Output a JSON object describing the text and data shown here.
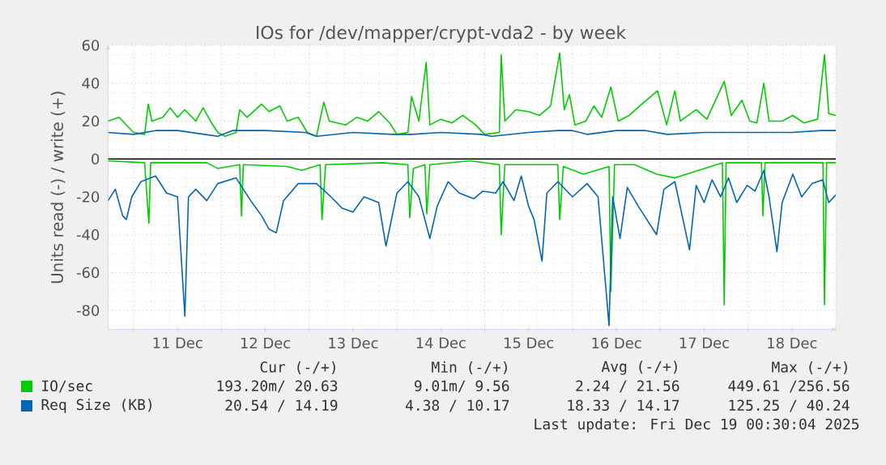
{
  "chart_data": {
    "type": "line",
    "title": "IOs for /dev/mapper/crypt-vda2 - by week",
    "ylabel": "Units read (-) / write (+)",
    "xlim": [
      "2025-12-10T17:00",
      "2025-12-19T00:00"
    ],
    "ylim": [
      -90,
      60
    ],
    "xticks": [
      {
        "value": "2025-12-11T00:00",
        "label": null
      },
      {
        "value": "2025-12-11T12:00",
        "label": "11 Dec"
      },
      {
        "value": "2025-12-12T00:00",
        "label": null
      },
      {
        "value": "2025-12-12T12:00",
        "label": "12 Dec"
      },
      {
        "value": "2025-12-13T00:00",
        "label": null
      },
      {
        "value": "2025-12-13T12:00",
        "label": "13 Dec"
      },
      {
        "value": "2025-12-14T00:00",
        "label": null
      },
      {
        "value": "2025-12-14T12:00",
        "label": "14 Dec"
      },
      {
        "value": "2025-12-15T00:00",
        "label": null
      },
      {
        "value": "2025-12-15T12:00",
        "label": "15 Dec"
      },
      {
        "value": "2025-12-16T00:00",
        "label": null
      },
      {
        "value": "2025-12-16T12:00",
        "label": "16 Dec"
      },
      {
        "value": "2025-12-17T00:00",
        "label": null
      },
      {
        "value": "2025-12-17T12:00",
        "label": "17 Dec"
      },
      {
        "value": "2025-12-18T00:00",
        "label": null
      },
      {
        "value": "2025-12-18T12:00",
        "label": "18 Dec"
      },
      {
        "value": "2025-12-19T00:00",
        "label": null
      }
    ],
    "yticks": [
      -80,
      -60,
      -40,
      -20,
      0,
      20,
      40,
      60
    ],
    "grid": true,
    "legend": "bottom",
    "marker": "none",
    "line_style": "solid",
    "ref_lines": [
      {
        "axis": "y",
        "value": 0,
        "color": "#000000"
      }
    ],
    "series": [
      {
        "name": "IO/sec",
        "color": "#00cc00",
        "x": [
          "2025-12-10T17:00",
          "2025-12-10T20:00",
          "2025-12-10T21:00",
          "2025-12-11T00:00",
          "2025-12-11T03:00",
          "2025-12-11T04:00",
          "2025-12-11T05:00",
          "2025-12-11T08:00",
          "2025-12-11T10:00",
          "2025-12-11T12:00",
          "2025-12-11T14:00",
          "2025-12-11T17:00",
          "2025-12-11T19:00",
          "2025-12-11T21:00",
          "2025-12-11T23:00",
          "2025-12-12T01:00",
          "2025-12-12T04:00",
          "2025-12-12T05:00",
          "2025-12-12T07:00",
          "2025-12-12T11:00",
          "2025-12-12T13:00",
          "2025-12-12T16:00",
          "2025-12-12T18:00",
          "2025-12-12T21:00",
          "2025-12-12T23:30",
          "2025-12-13T02:00",
          "2025-12-13T04:00",
          "2025-12-13T05:30",
          "2025-12-13T10:00",
          "2025-12-13T13:00",
          "2025-12-13T16:00",
          "2025-12-13T19:00",
          "2025-12-13T22:00",
          "2025-12-14T00:00",
          "2025-12-14T03:00",
          "2025-12-14T04:00",
          "2025-12-14T06:00",
          "2025-12-14T08:00",
          "2025-12-14T09:00",
          "2025-12-14T12:00",
          "2025-12-14T15:00",
          "2025-12-14T18:00",
          "2025-12-14T21:30",
          "2025-12-15T00:00",
          "2025-12-15T04:00",
          "2025-12-15T04:30",
          "2025-12-15T05:30",
          "2025-12-15T08:30",
          "2025-12-15T12:00",
          "2025-12-15T15:00",
          "2025-12-15T18:00",
          "2025-12-15T20:30",
          "2025-12-15T21:45",
          "2025-12-15T23:10",
          "2025-12-16T00:40",
          "2025-12-16T03:40",
          "2025-12-16T05:50",
          "2025-12-16T08:00",
          "2025-12-16T10:30",
          "2025-12-16T12:30",
          "2025-12-16T15:30",
          "2025-12-16T19:00",
          "2025-12-16T23:15",
          "2025-12-17T01:45",
          "2025-12-17T04:00",
          "2025-12-17T05:30",
          "2025-12-17T09:50",
          "2025-12-17T12:45",
          "2025-12-17T17:30",
          "2025-12-17T19:25",
          "2025-12-17T22:20",
          "2025-12-18T00:30",
          "2025-12-18T02:25",
          "2025-12-18T04:20",
          "2025-12-18T05:45",
          "2025-12-18T09:20",
          "2025-12-18T12:15",
          "2025-12-18T15:20",
          "2025-12-18T19:00",
          "2025-12-18T20:55",
          "2025-12-18T22:05",
          "2025-12-19T00:00"
        ],
        "values": [
          20,
          22,
          20,
          14,
          13,
          29,
          20,
          22,
          27,
          22,
          26,
          20,
          27,
          20,
          14,
          12,
          14,
          26,
          22,
          29,
          25,
          28,
          20,
          22,
          14,
          12,
          30,
          20,
          18,
          22,
          20,
          25,
          19,
          13,
          14,
          33,
          20,
          51,
          18,
          21,
          19,
          23,
          18,
          13,
          14,
          55,
          20,
          26,
          25,
          23,
          28,
          56,
          26,
          34,
          18,
          20,
          28,
          22,
          38,
          20,
          23,
          29,
          36,
          18,
          36,
          20,
          26,
          21,
          41,
          23,
          31,
          20,
          19,
          40,
          20,
          20,
          23,
          19,
          21,
          55,
          24,
          23
        ]
      },
      {
        "color": "#00cc00",
        "x": [
          "2025-12-10T17:00",
          "2025-12-11T03:00",
          "2025-12-11T04:10",
          "2025-12-11T04:40",
          "2025-12-11T20:00",
          "2025-12-11T23:00",
          "2025-12-12T05:00",
          "2025-12-12T05:30",
          "2025-12-12T06:00",
          "2025-12-12T18:00",
          "2025-12-12T22:00",
          "2025-12-13T03:00",
          "2025-12-13T03:30",
          "2025-12-13T04:30",
          "2025-12-13T20:00",
          "2025-12-14T03:00",
          "2025-12-14T03:30",
          "2025-12-14T04:30",
          "2025-12-14T07:40",
          "2025-12-14T08:10",
          "2025-12-14T09:00",
          "2025-12-14T20:00",
          "2025-12-15T04:00",
          "2025-12-15T04:30",
          "2025-12-15T05:30",
          "2025-12-15T20:00",
          "2025-12-15T20:30",
          "2025-12-15T21:30",
          "2025-12-16T03:00",
          "2025-12-16T10:00",
          "2025-12-16T10:30",
          "2025-12-16T11:30",
          "2025-12-16T17:00",
          "2025-12-16T23:00",
          "2025-12-17T04:00",
          "2025-12-17T17:00",
          "2025-12-17T17:30",
          "2025-12-17T18:00",
          "2025-12-18T03:40",
          "2025-12-18T04:05",
          "2025-12-18T04:40",
          "2025-12-18T20:30",
          "2025-12-18T20:55",
          "2025-12-18T21:30",
          "2025-12-19T00:00"
        ],
        "values": [
          -1,
          -2,
          -34,
          -2,
          -2,
          -5,
          -3,
          -30,
          -3,
          -4,
          -6,
          -3,
          -32,
          -3,
          -2,
          -3,
          -31,
          -5,
          -3,
          -29,
          -3,
          -1,
          -3,
          -40,
          -3,
          -3,
          -32,
          -4,
          -8,
          -4,
          -70,
          -3,
          -3,
          -8,
          -10,
          -2,
          -77,
          -2,
          -2,
          -30,
          -2,
          -2,
          -77,
          -2,
          -2
        ]
      },
      {
        "name": "Req Size (KB)",
        "color": "#0066b3",
        "x": [
          "2025-12-10T17:00",
          "2025-12-11T00:00",
          "2025-12-11T06:00",
          "2025-12-11T12:00",
          "2025-12-11T23:00",
          "2025-12-12T03:00",
          "2025-12-12T12:00",
          "2025-12-12T23:00",
          "2025-12-13T02:00",
          "2025-12-13T12:00",
          "2025-12-13T23:00",
          "2025-12-14T04:00",
          "2025-12-14T12:00",
          "2025-12-14T23:00",
          "2025-12-15T02:00",
          "2025-12-15T12:00",
          "2025-12-15T20:00",
          "2025-12-16T00:00",
          "2025-12-16T04:00",
          "2025-12-16T12:00",
          "2025-12-16T20:00",
          "2025-12-17T02:00",
          "2025-12-17T12:00",
          "2025-12-17T20:00",
          "2025-12-18T00:00",
          "2025-12-18T12:00",
          "2025-12-18T20:00",
          "2025-12-19T00:00"
        ],
        "values": [
          14,
          13,
          15,
          15,
          12,
          15,
          15,
          14,
          12,
          14,
          13,
          13,
          14,
          13,
          12,
          14,
          15,
          15,
          13,
          15,
          15,
          13,
          14,
          14,
          14,
          14,
          15,
          15
        ]
      },
      {
        "color": "#0066b3",
        "x": [
          "2025-12-10T17:00",
          "2025-12-10T19:00",
          "2025-12-10T21:00",
          "2025-12-10T22:00",
          "2025-12-10T23:30",
          "2025-12-11T02:00",
          "2025-12-11T06:00",
          "2025-12-11T09:00",
          "2025-12-11T12:00",
          "2025-12-11T14:00",
          "2025-12-11T15:00",
          "2025-12-11T17:00",
          "2025-12-11T20:00",
          "2025-12-11T23:00",
          "2025-12-12T04:00",
          "2025-12-12T08:00",
          "2025-12-12T11:00",
          "2025-12-12T13:00",
          "2025-12-12T15:00",
          "2025-12-12T17:00",
          "2025-12-12T21:00",
          "2025-12-13T02:00",
          "2025-12-13T06:00",
          "2025-12-13T09:00",
          "2025-12-13T12:00",
          "2025-12-13T15:00",
          "2025-12-13T19:00",
          "2025-12-13T21:00",
          "2025-12-14T00:00",
          "2025-12-14T03:00",
          "2025-12-14T06:00",
          "2025-12-14T09:00",
          "2025-12-14T11:00",
          "2025-12-14T14:00",
          "2025-12-14T17:00",
          "2025-12-14T21:00",
          "2025-12-14T23:30",
          "2025-12-15T03:00",
          "2025-12-15T05:00",
          "2025-12-15T08:00",
          "2025-12-15T10:00",
          "2025-12-15T12:00",
          "2025-12-15T13:30",
          "2025-12-15T15:40",
          "2025-12-15T17:00",
          "2025-12-15T20:00",
          "2025-12-16T00:00",
          "2025-12-16T04:00",
          "2025-12-16T07:00",
          "2025-12-16T10:00",
          "2025-12-16T11:00",
          "2025-12-16T13:00",
          "2025-12-16T15:00",
          "2025-12-16T18:00",
          "2025-12-16T23:00",
          "2025-12-17T01:00",
          "2025-12-17T04:00",
          "2025-12-17T08:00",
          "2025-12-17T09:50",
          "2025-12-17T12:00",
          "2025-12-17T14:10",
          "2025-12-17T16:30",
          "2025-12-17T18:40",
          "2025-12-17T20:55",
          "2025-12-17T23:45",
          "2025-12-18T01:55",
          "2025-12-18T04:20",
          "2025-12-18T05:45",
          "2025-12-18T07:55",
          "2025-12-18T09:20",
          "2025-12-18T12:15",
          "2025-12-18T14:40",
          "2025-12-18T17:30",
          "2025-12-18T20:25",
          "2025-12-18T22:05",
          "2025-12-19T00:00"
        ],
        "values": [
          -22,
          -16,
          -30,
          -32,
          -20,
          -12,
          -9,
          -18,
          -20,
          -83,
          -20,
          -16,
          -22,
          -13,
          -10,
          -22,
          -30,
          -37,
          -39,
          -22,
          -13,
          -13,
          -20,
          -26,
          -28,
          -20,
          -23,
          -46,
          -18,
          -12,
          -20,
          -42,
          -25,
          -12,
          -18,
          -21,
          -17,
          -18,
          -12,
          -22,
          -9,
          -25,
          -32,
          -54,
          -18,
          -12,
          -20,
          -13,
          -20,
          -88,
          -20,
          -42,
          -15,
          -25,
          -40,
          -16,
          -12,
          -48,
          -14,
          -23,
          -11,
          -20,
          -10,
          -23,
          -14,
          -17,
          -6,
          -20,
          -49,
          -23,
          -8,
          -20,
          -13,
          -11,
          -23,
          -19
        ]
      }
    ],
    "annotations": [
      "Cur (-/+)",
      "Min (-/+)",
      "Avg (-/+)",
      "Max (-/+)",
      "193.20m/ 20.63",
      "9.01m/  9.56",
      "2.24 / 21.56",
      "449.61 /256.56",
      "20.54 / 14.19",
      "4.38 / 10.17",
      "18.33 / 14.17",
      "125.25 / 40.24",
      "Last update: Fri Dec 19 00:30:04 2025"
    ]
  }
}
